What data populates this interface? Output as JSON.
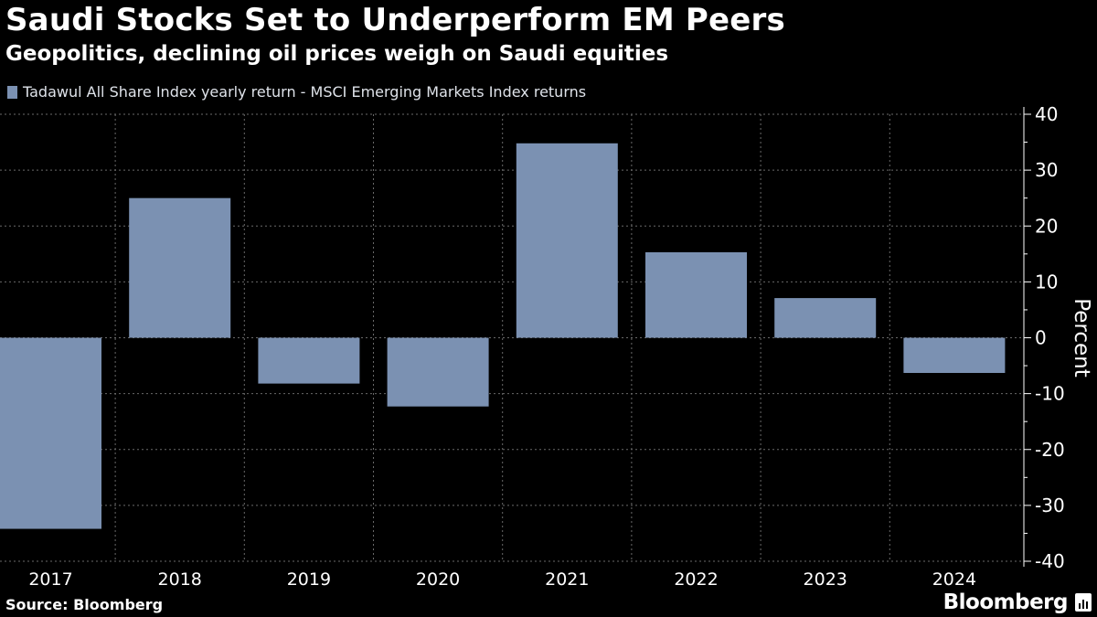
{
  "header": {
    "title": "Saudi Stocks Set to Underperform EM Peers",
    "subtitle": "Geopolitics, declining oil prices weigh on Saudi equities"
  },
  "legend": {
    "label": "Tadawul All Share Index yearly return - MSCI Emerging Markets Index returns",
    "color": "#7b91b2"
  },
  "footer": {
    "source": "Source: Bloomberg",
    "brand": "Bloomberg"
  },
  "colors": {
    "bar": "#7b91b2",
    "grid": "#6a6a6a",
    "axis": "#ffffff",
    "background": "#000000"
  },
  "chart_data": {
    "type": "bar",
    "title": "Saudi Stocks Set to Underperform EM Peers",
    "subtitle": "Geopolitics, declining oil prices weigh on Saudi equities",
    "categories": [
      "2017",
      "2018",
      "2019",
      "2020",
      "2021",
      "2022",
      "2023",
      "2024"
    ],
    "series": [
      {
        "name": "Tadawul All Share Index yearly return - MSCI Emerging Markets Index returns",
        "values": [
          -34.2,
          25.0,
          -8.2,
          -12.3,
          34.8,
          15.3,
          7.1,
          -6.3
        ]
      }
    ],
    "xlabel": "",
    "ylabel": "Percent",
    "ylim": [
      -40,
      40
    ],
    "yticks": [
      40,
      30,
      20,
      10,
      0,
      -10,
      -20,
      -30,
      -40
    ],
    "ytick_labels": [
      "40",
      "30",
      "20",
      "10",
      "0",
      "-10",
      "-20",
      "-30",
      "-40"
    ],
    "grid": true,
    "y_axis_side": "right"
  }
}
